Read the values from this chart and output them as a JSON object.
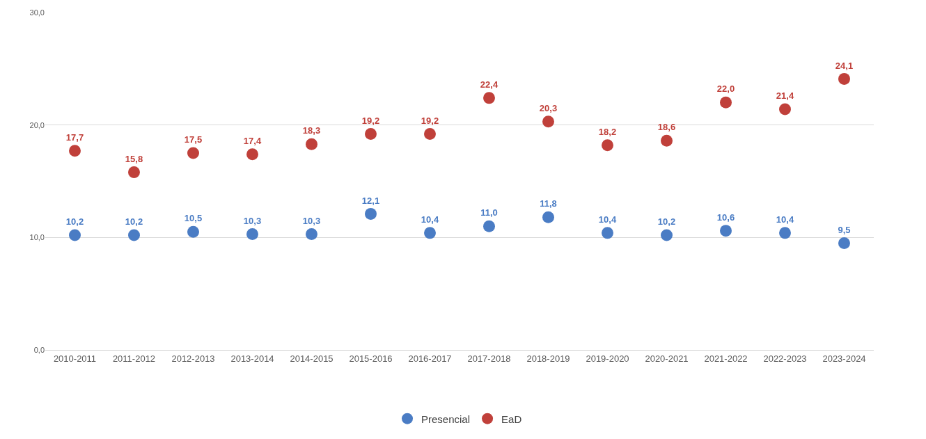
{
  "chart_data": {
    "type": "scatter",
    "categories": [
      "2010-2011",
      "2011-2012",
      "2012-2013",
      "2013-2014",
      "2014-2015",
      "2015-2016",
      "2016-2017",
      "2017-2018",
      "2018-2019",
      "2019-2020",
      "2020-2021",
      "2021-2022",
      "2022-2023",
      "2023-2024"
    ],
    "series": [
      {
        "name": "Presencial",
        "color": "#4a7cc4",
        "values": [
          10.2,
          10.2,
          10.5,
          10.3,
          10.3,
          12.1,
          10.4,
          11.0,
          11.8,
          10.4,
          10.2,
          10.6,
          10.4,
          9.5
        ],
        "value_labels": [
          "10,2",
          "10,2",
          "10,5",
          "10,3",
          "10,3",
          "12,1",
          "10,4",
          "11,0",
          "11,8",
          "10,4",
          "10,2",
          "10,6",
          "10,4",
          "9,5"
        ]
      },
      {
        "name": "EaD",
        "color": "#c0403a",
        "values": [
          17.7,
          15.8,
          17.5,
          17.4,
          18.3,
          19.2,
          19.2,
          22.4,
          20.3,
          18.2,
          18.6,
          22.0,
          21.4,
          24.1
        ],
        "value_labels": [
          "17,7",
          "15,8",
          "17,5",
          "17,4",
          "18,3",
          "19,2",
          "19,2",
          "22,4",
          "20,3",
          "18,2",
          "18,6",
          "22,0",
          "21,4",
          "24,1"
        ]
      }
    ],
    "ylim": [
      0,
      30
    ],
    "yticks": [
      {
        "value": 0,
        "label": "0,0"
      },
      {
        "value": 10,
        "label": "10,0"
      },
      {
        "value": 20,
        "label": "20,0"
      },
      {
        "value": 30,
        "label": "30,0"
      }
    ],
    "grid": "y",
    "legend": "bottom",
    "marker": "circle"
  }
}
